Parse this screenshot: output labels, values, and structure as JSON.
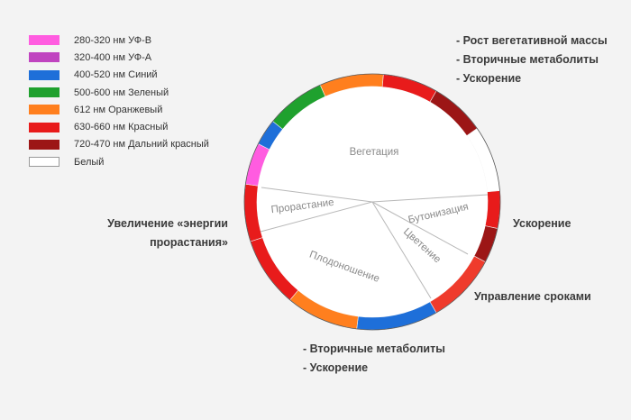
{
  "legend": [
    {
      "label": "280-320 нм УФ-В",
      "color": "#ff5ce0"
    },
    {
      "label": "320-400 нм УФ-А",
      "color": "#c044c0"
    },
    {
      "label": "400-520 нм Синий",
      "color": "#1e6fd9"
    },
    {
      "label": "500-600 нм Зеленый",
      "color": "#1fa12e"
    },
    {
      "label": "612 нм Оранжевый",
      "color": "#ff7f1e"
    },
    {
      "label": "630-660 нм Красный",
      "color": "#e81b1b"
    },
    {
      "label": "720-470 нм Дальний красный",
      "color": "#9c1616"
    },
    {
      "label": "Белый",
      "color": "#ffffff"
    }
  ],
  "phases": {
    "vegetation": "Вегетация",
    "germination": "Прорастание",
    "budding": "Бутонизация",
    "flowering": "Цветение",
    "fruiting": "Плодоношение"
  },
  "notes": {
    "top_right": [
      "- Рост вегетативной массы",
      "- Вторичные метаболиты",
      "- Ускорение"
    ],
    "right": "Ускорение",
    "bottom_right": "Управление сроками",
    "left": [
      "Увеличение «энергии",
      "прорастания»"
    ],
    "bottom": [
      "- Вторичные метаболиты",
      "- Ускорение"
    ]
  },
  "ring_segments": [
    {
      "color": "#1fa12e"
    },
    {
      "color": "#ff7f1e"
    },
    {
      "color": "#e81b1b"
    },
    {
      "color": "#9c1616"
    },
    {
      "color": "#ffffff"
    },
    {
      "color": "#e81b1b"
    },
    {
      "color": "#9c1616"
    },
    {
      "color": "#ef3b2c"
    },
    {
      "color": "#1e6fd9"
    },
    {
      "color": "#ff7f1e"
    },
    {
      "color": "#e81b1b"
    },
    {
      "color": "#e81b1b"
    },
    {
      "color": "#ff5ce0"
    },
    {
      "color": "#1e6fd9"
    }
  ]
}
